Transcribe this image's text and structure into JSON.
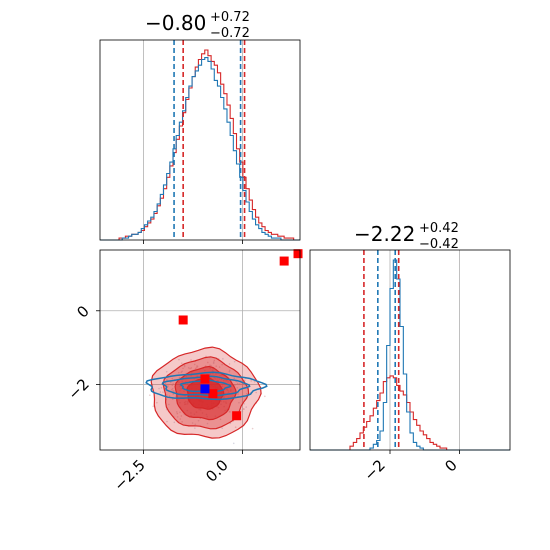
{
  "chart_data": {
    "type": "corner",
    "colors": {
      "red": "#d62728",
      "blue": "#1f77b4",
      "red_marker": "#ff0000",
      "blue_marker": "#0000ff"
    },
    "xlim_param1": [
      -3.6,
      1.45
    ],
    "ylim_param2": [
      -3.78,
      1.65
    ],
    "grid": true,
    "titles": {
      "param1": {
        "value": "−0.80",
        "upper": "+0.72",
        "lower": "−0.72"
      },
      "param2": {
        "value": "−2.22",
        "upper": "+0.42",
        "lower": "−0.42"
      }
    },
    "ticks": {
      "x_param1": [
        {
          "value": -2.5,
          "label": "−2.5"
        },
        {
          "value": 0.0,
          "label": "0.0"
        }
      ],
      "y_param2": [
        {
          "value": 0,
          "label": "0"
        },
        {
          "value": -2,
          "label": "−2"
        }
      ],
      "x_param2": [
        {
          "value": -2,
          "label": "−2"
        },
        {
          "value": 0,
          "label": "0"
        }
      ]
    },
    "quantiles": {
      "param1": {
        "red": [
          -1.5,
          0.05
        ],
        "blue": [
          -1.73,
          -0.05
        ]
      },
      "param2": {
        "red": [
          -2.75,
          -1.75
        ],
        "blue": [
          -2.35,
          -1.85
        ]
      }
    },
    "hist_param1": {
      "bins_range": [
        -3.6,
        1.45
      ],
      "red": [
        0,
        0,
        0,
        0,
        0,
        0,
        0.01,
        0.01,
        0.02,
        0.02,
        0.03,
        0.03,
        0.04,
        0.05,
        0.07,
        0.09,
        0.11,
        0.14,
        0.18,
        0.22,
        0.27,
        0.33,
        0.39,
        0.46,
        0.53,
        0.6,
        0.67,
        0.74,
        0.8,
        0.86,
        0.91,
        0.95,
        0.98,
        1.0,
        0.97,
        0.94,
        0.92,
        0.88,
        0.82,
        0.77,
        0.71,
        0.64,
        0.56,
        0.48,
        0.41,
        0.33,
        0.27,
        0.21,
        0.16,
        0.12,
        0.09,
        0.07,
        0.05,
        0.04,
        0.03,
        0.03,
        0.02,
        0.02,
        0.01,
        0.01,
        0.01,
        0.0,
        0.0
      ],
      "blue": [
        0,
        0,
        0,
        0,
        0,
        0,
        0,
        0.01,
        0.01,
        0.02,
        0.03,
        0.03,
        0.04,
        0.06,
        0.08,
        0.1,
        0.12,
        0.15,
        0.19,
        0.24,
        0.29,
        0.35,
        0.41,
        0.48,
        0.55,
        0.62,
        0.68,
        0.75,
        0.81,
        0.86,
        0.89,
        0.92,
        0.95,
        0.96,
        0.94,
        0.9,
        0.84,
        0.81,
        0.75,
        0.69,
        0.62,
        0.55,
        0.47,
        0.4,
        0.33,
        0.26,
        0.2,
        0.15,
        0.11,
        0.08,
        0.06,
        0.04,
        0.03,
        0.02,
        0.01,
        0.01,
        0.01,
        0,
        0,
        0,
        0,
        0,
        0
      ]
    },
    "hist_param2": {
      "bins_range": [
        -4.3,
        1.45
      ],
      "red": [
        0,
        0,
        0,
        0,
        0,
        0,
        0,
        0,
        0,
        0,
        0,
        0,
        0.02,
        0.04,
        0.06,
        0.09,
        0.12,
        0.15,
        0.18,
        0.22,
        0.26,
        0.3,
        0.36,
        0.38,
        0.39,
        0.38,
        0.34,
        0.31,
        0.29,
        0.25,
        0.2,
        0.16,
        0.13,
        0.1,
        0.08,
        0.06,
        0.04,
        0.03,
        0.02,
        0.01,
        0.01,
        0,
        0,
        0,
        0,
        0,
        0,
        0,
        0,
        0,
        0,
        0,
        0,
        0,
        0,
        0,
        0,
        0,
        0,
        0
      ],
      "blue": [
        0,
        0,
        0,
        0,
        0,
        0,
        0,
        0,
        0,
        0,
        0,
        0,
        0,
        0,
        0,
        0,
        0,
        0,
        0.01,
        0.03,
        0.05,
        0.1,
        0.25,
        0.55,
        0.85,
        1.0,
        0.9,
        0.65,
        0.4,
        0.2,
        0.09,
        0.04,
        0.02,
        0.01,
        0,
        0,
        0,
        0,
        0,
        0,
        0,
        0,
        0,
        0,
        0,
        0,
        0,
        0,
        0,
        0,
        0,
        0,
        0,
        0,
        0,
        0,
        0,
        0,
        0,
        0
      ]
    },
    "contours_2d": {
      "red": [
        {
          "cx": -0.95,
          "cy": -2.25,
          "rx": 1.35,
          "ry": 1.2,
          "alpha": 0.25
        },
        {
          "cx": -0.95,
          "cy": -2.25,
          "rx": 1.05,
          "ry": 0.95,
          "alpha": 0.35
        },
        {
          "cx": -0.95,
          "cy": -2.25,
          "rx": 0.75,
          "ry": 0.7,
          "alpha": 0.55
        },
        {
          "cx": -0.95,
          "cy": -2.25,
          "rx": 0.45,
          "ry": 0.42,
          "alpha": 0.75
        }
      ],
      "blue": [
        {
          "cx": -0.95,
          "cy": -2.05,
          "rx": 1.45,
          "ry": 0.35
        },
        {
          "cx": -0.95,
          "cy": -2.05,
          "rx": 1.05,
          "ry": 0.25
        },
        {
          "cx": -0.95,
          "cy": -2.05,
          "rx": 0.6,
          "ry": 0.15
        }
      ]
    },
    "markers": {
      "red": [
        {
          "x": -1.5,
          "y": -0.25
        },
        {
          "x": 1.05,
          "y": 1.35
        },
        {
          "x": 1.45,
          "y": 1.55
        },
        {
          "x": -0.95,
          "y": -1.85
        },
        {
          "x": -0.75,
          "y": -2.25
        },
        {
          "x": -0.15,
          "y": -2.85
        }
      ],
      "blue": [
        {
          "x": -0.95,
          "y": -2.12
        }
      ]
    }
  }
}
